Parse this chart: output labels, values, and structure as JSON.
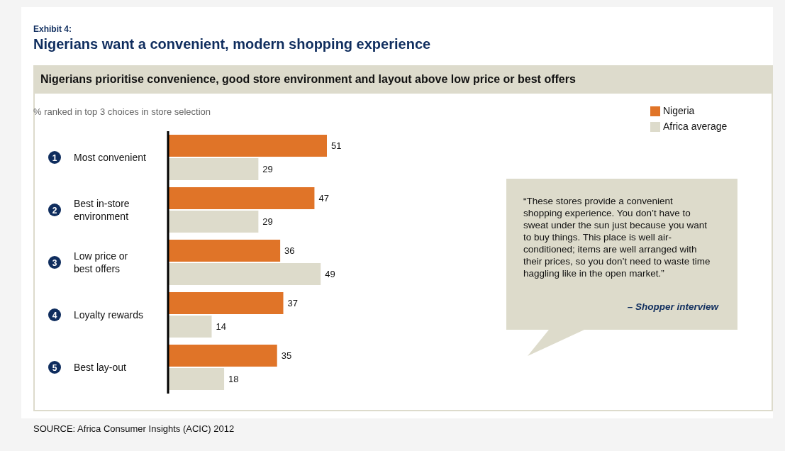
{
  "chart_data": {
    "type": "bar",
    "orientation": "horizontal",
    "title": "Nigerians want a convenient, modern shopping experience",
    "subtitle": "Nigerians prioritise convenience, good store environment and layout above low price or best offers",
    "xlabel": "% ranked in top 3 choices in store selection",
    "categories": [
      "1 Most convenient",
      "2 Best in-store environment",
      "3 Low price or best offers",
      "4 Loyalty rewards",
      "5 Best lay-out"
    ],
    "series": [
      {
        "name": "Nigeria",
        "color": "#e07428",
        "values": [
          51,
          47,
          36,
          37,
          35
        ]
      },
      {
        "name": "Africa average",
        "color": "#dddbcb",
        "values": [
          29,
          29,
          49,
          14,
          18
        ]
      }
    ],
    "data_labels": true,
    "legend": "top right",
    "grid": false,
    "annotations": [
      "Exhibit 4:",
      "“These stores provide a convenient shopping experience. You don’t have to sweat under the sun just because you want to buy things. This place is well air-conditioned; items are well arranged with their prices, so you don’t need to waste time haggling like in the open market.”",
      "– Shopper interview",
      "SOURCE: Africa Consumer Insights (ACIC) 2012"
    ]
  }
}
